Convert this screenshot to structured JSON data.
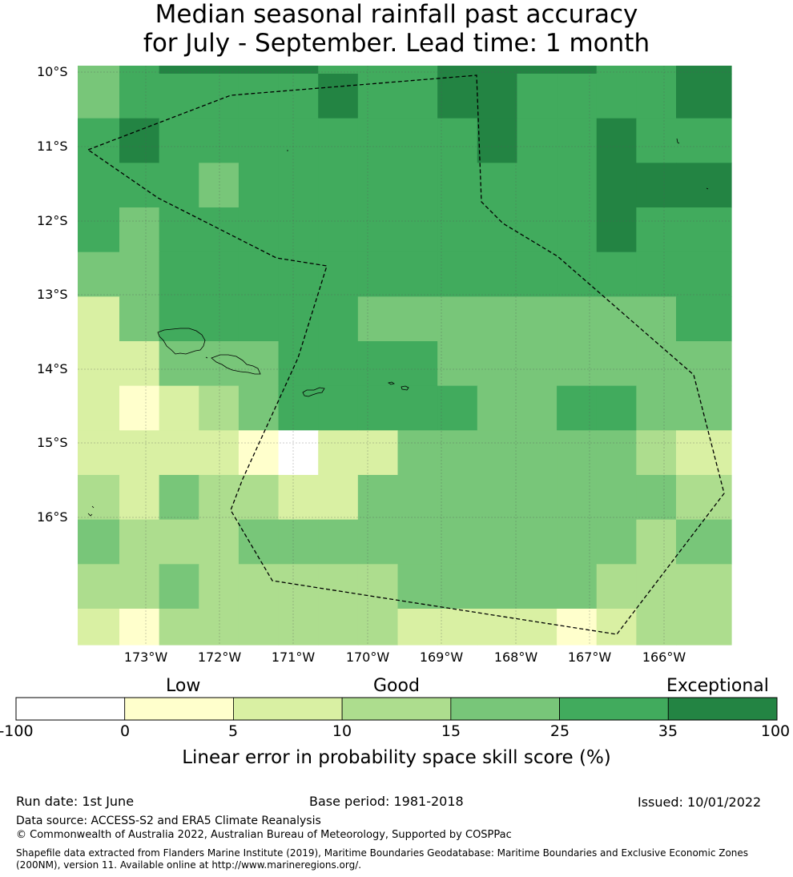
{
  "title": {
    "line1": "Median seasonal rainfall past accuracy",
    "line2": "for July - September. Lead time: 1 month"
  },
  "map": {
    "lat_labels": [
      "10°S",
      "11°S",
      "12°S",
      "13°S",
      "14°S",
      "15°S",
      "16°S"
    ],
    "lon_labels": [
      "173°W",
      "172°W",
      "171°W",
      "170°W",
      "169°W",
      "168°W",
      "167°W",
      "166°W"
    ],
    "grid_skill_category": [
      [
        4,
        5,
        6,
        6,
        6,
        6,
        5,
        5,
        5,
        6,
        6,
        6,
        6,
        5,
        5,
        6
      ],
      [
        4,
        5,
        5,
        5,
        5,
        5,
        6,
        5,
        5,
        6,
        6,
        5,
        5,
        5,
        5,
        6
      ],
      [
        5,
        6,
        5,
        5,
        5,
        5,
        5,
        5,
        5,
        5,
        6,
        5,
        5,
        6,
        5,
        5
      ],
      [
        5,
        5,
        5,
        4,
        5,
        5,
        5,
        5,
        5,
        5,
        5,
        5,
        5,
        6,
        6,
        6
      ],
      [
        5,
        4,
        5,
        5,
        5,
        5,
        5,
        5,
        5,
        5,
        5,
        5,
        5,
        6,
        5,
        5
      ],
      [
        4,
        4,
        5,
        5,
        5,
        5,
        5,
        5,
        5,
        5,
        5,
        5,
        5,
        5,
        5,
        5
      ],
      [
        2,
        4,
        5,
        5,
        5,
        5,
        5,
        4,
        4,
        4,
        4,
        4,
        4,
        4,
        4,
        5
      ],
      [
        2,
        2,
        4,
        4,
        4,
        5,
        5,
        5,
        5,
        4,
        4,
        4,
        4,
        4,
        4,
        4
      ],
      [
        2,
        1,
        2,
        3,
        4,
        5,
        5,
        5,
        5,
        5,
        4,
        4,
        5,
        5,
        4,
        4
      ],
      [
        2,
        2,
        2,
        2,
        1,
        0,
        2,
        2,
        4,
        4,
        4,
        4,
        4,
        4,
        3,
        2
      ],
      [
        3,
        2,
        4,
        3,
        3,
        2,
        2,
        4,
        4,
        4,
        4,
        4,
        4,
        4,
        4,
        3
      ],
      [
        4,
        3,
        3,
        3,
        4,
        4,
        4,
        4,
        4,
        4,
        4,
        4,
        4,
        4,
        3,
        4
      ],
      [
        3,
        3,
        4,
        3,
        3,
        3,
        3,
        3,
        4,
        4,
        4,
        4,
        4,
        3,
        3,
        3
      ],
      [
        2,
        1,
        3,
        3,
        3,
        3,
        3,
        3,
        2,
        2,
        2,
        2,
        1,
        2,
        3,
        3
      ]
    ]
  },
  "colorbar": {
    "categories": [
      "Low",
      "Good",
      "Exceptional"
    ],
    "ticks": [
      "-100",
      "0",
      "5",
      "10",
      "15",
      "25",
      "35",
      "100"
    ],
    "colors": [
      "#ffffff",
      "#ffffcc",
      "#d9f0a3",
      "#addd8e",
      "#78c679",
      "#41ab5d",
      "#238443"
    ],
    "label": "Linear error in probability space skill score (%)"
  },
  "footer": {
    "run_date": "Run date: 1st June",
    "base_period": "Base period: 1981-2018",
    "issued": "Issued: 10/01/2022",
    "data_source": "Data source: ACCESS-S2 and ERA5 Climate Reanalysis",
    "copyright": "© Commonwealth of Australia 2022, Australian Bureau of Meteorology, Supported by COSPPac",
    "shapefile_line1": "Shapefile data extracted from Flanders Marine Institute (2019), Maritime Boundaries Geodatabase: Maritime Boundaries and Exclusive Economic Zones",
    "shapefile_line2": "(200NM), version 11. Available online at http://www.marineregions.org/."
  }
}
